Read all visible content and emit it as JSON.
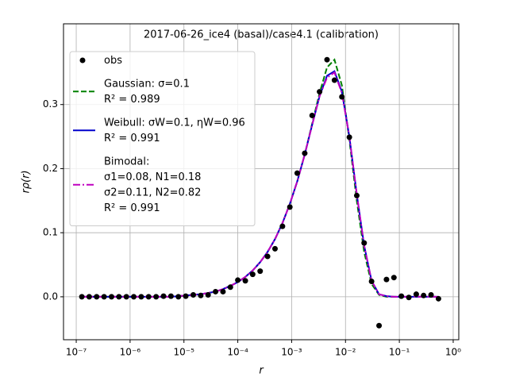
{
  "chart_data": {
    "type": "line",
    "title": "2017-06-26_ice4 (basal)/case4.1 (calibration)",
    "xlabel": "r",
    "ylabel": "rρ(r)",
    "xscale": "log",
    "grid": true,
    "legend": "upper left",
    "xlim": [
      5.8e-08,
      1.27
    ],
    "ylim": [
      -0.067,
      0.426
    ],
    "xticks": [
      {
        "value": 1e-07,
        "label": "10⁻⁷"
      },
      {
        "value": 1e-06,
        "label": "10⁻⁶"
      },
      {
        "value": 1e-05,
        "label": "10⁻⁵"
      },
      {
        "value": 0.0001,
        "label": "10⁻⁴"
      },
      {
        "value": 0.001,
        "label": "10⁻³"
      },
      {
        "value": 0.01,
        "label": "10⁻²"
      },
      {
        "value": 0.1,
        "label": "10⁻¹"
      },
      {
        "value": 1,
        "label": "10⁰"
      }
    ],
    "yticks": [
      {
        "value": 0,
        "label": "0.0"
      },
      0.1,
      0.2,
      0.3
    ],
    "x": [
      1.27e-07,
      1.74e-07,
      2.39e-07,
      3.29e-07,
      4.52e-07,
      6.21e-07,
      8.53e-07,
      1.17e-06,
      1.61e-06,
      2.21e-06,
      3.04e-06,
      4.18e-06,
      5.74e-06,
      7.89e-06,
      1.08e-05,
      1.49e-05,
      2.05e-05,
      2.81e-05,
      3.86e-05,
      5.31e-05,
      7.29e-05,
      0.0001,
      0.000138,
      0.000189,
      0.00026,
      0.000357,
      0.000491,
      0.000675,
      0.000927,
      0.00127,
      0.00175,
      0.0024,
      0.0033,
      0.00454,
      0.00624,
      0.00857,
      0.0118,
      0.0162,
      0.0222,
      0.0305,
      0.042,
      0.0577,
      0.0793,
      0.109,
      0.15,
      0.206,
      0.282,
      0.388,
      0.533
    ],
    "series": [
      {
        "name": "obs",
        "style": "markers",
        "color": "#000000",
        "values": [
          0,
          0,
          0,
          0,
          0,
          0,
          0,
          0,
          0,
          0,
          0,
          0.001,
          0.001,
          0,
          0.001,
          0.003,
          0.002,
          0.003,
          0.008,
          0.008,
          0.015,
          0.026,
          0.025,
          0.035,
          0.04,
          0.063,
          0.075,
          0.11,
          0.14,
          0.193,
          0.224,
          0.283,
          0.32,
          0.37,
          0.338,
          0.312,
          0.249,
          0.158,
          0.084,
          0.024,
          -0.045,
          0.027,
          0.03,
          0.001,
          -0.001,
          0.004,
          0.002,
          0.003,
          -0.003
        ]
      },
      {
        "name": "Gaussian: σ=0.1\nR² = 0.989",
        "style": "dashed",
        "color": "#008000",
        "values": [
          0,
          0,
          0,
          0,
          0,
          0,
          0,
          0,
          0,
          0,
          0,
          0,
          0,
          0.001,
          0.002,
          0.003,
          0.004,
          0.006,
          0.008,
          0.012,
          0.017,
          0.023,
          0.031,
          0.041,
          0.054,
          0.07,
          0.09,
          0.115,
          0.145,
          0.18,
          0.222,
          0.27,
          0.318,
          0.358,
          0.37,
          0.33,
          0.245,
          0.15,
          0.07,
          0.02,
          0.003,
          0,
          0,
          0,
          0,
          0,
          0,
          0,
          0
        ]
      },
      {
        "name": "Weibull: σW=0.1, ηW=0.96\nR² = 0.991",
        "style": "solid",
        "color": "#0000cc",
        "values": [
          0,
          0,
          0,
          0,
          0,
          0,
          0,
          0,
          0,
          0,
          0,
          0,
          0,
          0.001,
          0.002,
          0.003,
          0.004,
          0.006,
          0.008,
          0.012,
          0.017,
          0.023,
          0.031,
          0.041,
          0.054,
          0.07,
          0.09,
          0.115,
          0.145,
          0.18,
          0.222,
          0.268,
          0.313,
          0.345,
          0.352,
          0.32,
          0.25,
          0.16,
          0.08,
          0.025,
          0.004,
          0.001,
          0,
          0,
          0,
          0,
          0,
          0,
          0
        ]
      },
      {
        "name": "Bimodal:\nσ1=0.08, N1=0.18\nσ2=0.11, N2=0.82\nR² = 0.991",
        "style": "dashdot",
        "color": "#bf00bf",
        "values": [
          0,
          0,
          0,
          0,
          0,
          0,
          0,
          0,
          0,
          0,
          0,
          0,
          0,
          0.001,
          0.002,
          0.003,
          0.004,
          0.006,
          0.008,
          0.012,
          0.017,
          0.023,
          0.031,
          0.041,
          0.054,
          0.07,
          0.09,
          0.115,
          0.145,
          0.18,
          0.222,
          0.268,
          0.313,
          0.342,
          0.35,
          0.318,
          0.25,
          0.16,
          0.08,
          0.025,
          0.004,
          0.001,
          0,
          0,
          0,
          0,
          0,
          0,
          0
        ]
      }
    ]
  }
}
